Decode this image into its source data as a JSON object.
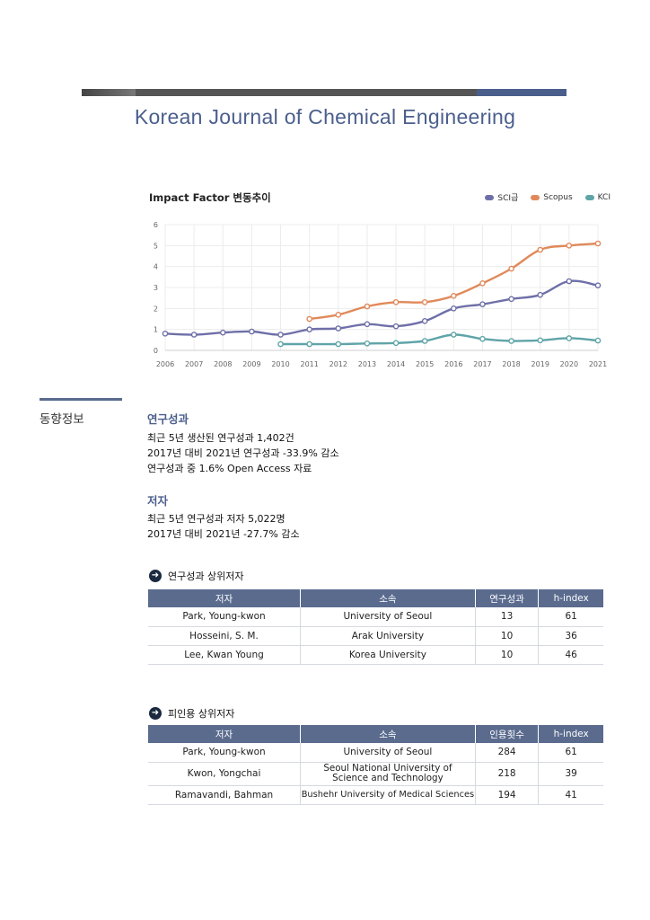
{
  "journal": {
    "title": "Korean Journal of Chemical Engineering"
  },
  "chart_data": {
    "type": "line",
    "title": "Impact Factor 변동추이",
    "x": [
      2006,
      2007,
      2008,
      2009,
      2010,
      2011,
      2012,
      2013,
      2014,
      2015,
      2016,
      2017,
      2018,
      2019,
      2020,
      2021
    ],
    "ylim": [
      0,
      6
    ],
    "yticks": [
      0,
      1,
      2,
      3,
      4,
      5,
      6
    ],
    "grid": true,
    "legend_position": "top-right",
    "series": [
      {
        "name": "SCI급",
        "color": "#6e6fa8",
        "values": [
          0.8,
          0.75,
          0.85,
          0.9,
          0.75,
          1.0,
          1.05,
          1.25,
          1.15,
          1.4,
          2.0,
          2.2,
          2.45,
          2.65,
          3.3,
          3.1
        ]
      },
      {
        "name": "Scopus",
        "color": "#e0895a",
        "values": [
          null,
          null,
          null,
          null,
          null,
          1.5,
          1.7,
          2.1,
          2.3,
          2.3,
          2.6,
          3.2,
          3.9,
          4.8,
          5.0,
          5.1
        ]
      },
      {
        "name": "KCI",
        "color": "#5fa4a8",
        "values": [
          null,
          null,
          null,
          null,
          0.3,
          0.3,
          0.3,
          0.33,
          0.35,
          0.45,
          0.75,
          0.55,
          0.45,
          0.48,
          0.58,
          0.47
        ]
      }
    ]
  },
  "sidebar": {
    "label": "동향정보"
  },
  "research": {
    "title": "연구성과",
    "lines": [
      "최근 5년 생산된 연구성과 1,402건",
      "2017년 대비 2021년 연구성과 -33.9% 감소",
      "연구성과 중 1.6% Open Access 자료"
    ]
  },
  "authors": {
    "title": "저자",
    "lines": [
      "최근 5년 연구성과 저자 5,022명",
      "2017년 대비 2021년 -27.7% 감소"
    ]
  },
  "table1": {
    "heading": "연구성과 상위저자",
    "icon": "arrow-right-circle-icon",
    "headers": [
      "저자",
      "소속",
      "연구성과",
      "h-index"
    ],
    "rows": [
      [
        "Park, Young-kwon",
        "University of Seoul",
        "13",
        "61"
      ],
      [
        "Hosseini, S. M.",
        "Arak University",
        "10",
        "36"
      ],
      [
        "Lee, Kwan Young",
        "Korea University",
        "10",
        "46"
      ]
    ]
  },
  "table2": {
    "heading": "피인용 상위저자",
    "icon": "arrow-right-circle-icon",
    "headers": [
      "저자",
      "소속",
      "인용횟수",
      "h-index"
    ],
    "rows": [
      [
        "Park, Young-kwon",
        "University of Seoul",
        "284",
        "61"
      ],
      [
        "Kwon, Yongchai",
        "Seoul National University of\nScience and Technology",
        "218",
        "39"
      ],
      [
        "Ramavandi, Bahman",
        "Bushehr University of Medical Sciences",
        "194",
        "41"
      ]
    ]
  }
}
